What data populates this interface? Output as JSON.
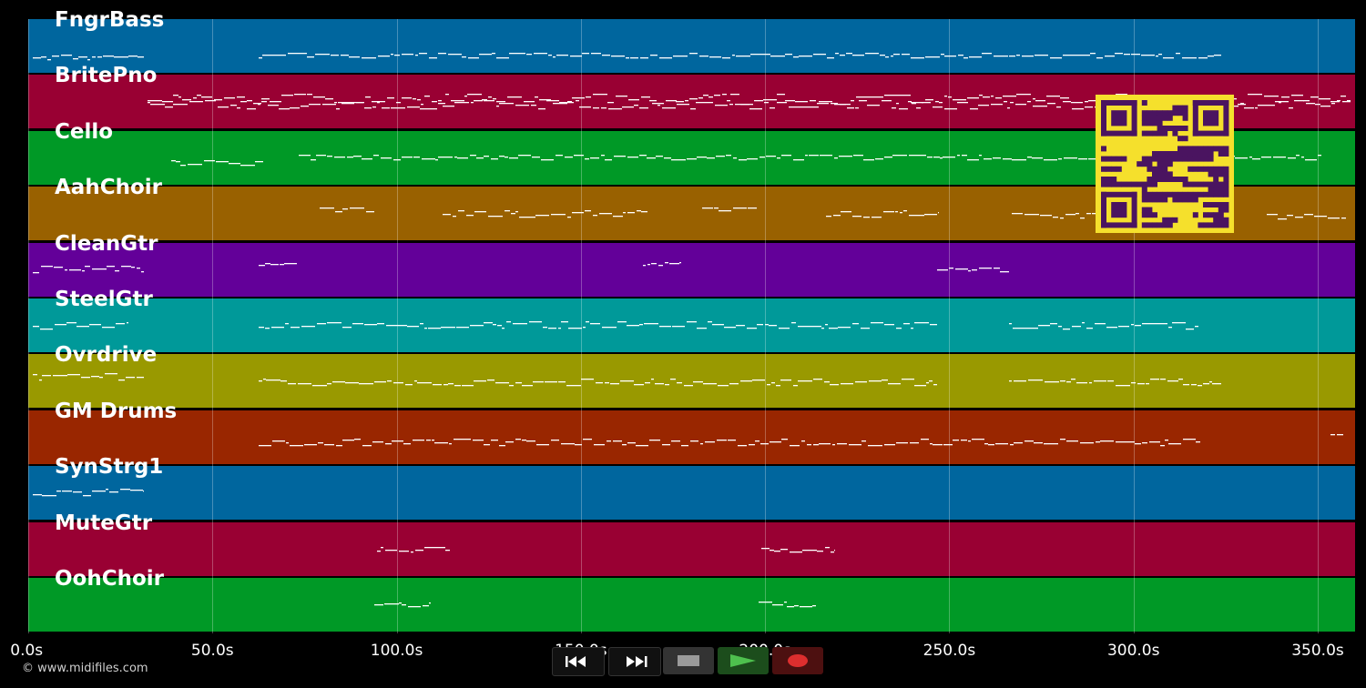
{
  "tracks": [
    {
      "name": "FngrBass",
      "color": "#00669e"
    },
    {
      "name": "BritePno",
      "color": "#990033"
    },
    {
      "name": "Cello",
      "color": "#009926"
    },
    {
      "name": "AahChoir",
      "color": "#996100"
    },
    {
      "name": "CleanGtr",
      "color": "#630099"
    },
    {
      "name": "SteelGtr",
      "color": "#009999"
    },
    {
      "name": "Ovrdrive",
      "color": "#999900"
    },
    {
      "name": "GM Drums",
      "color": "#992600"
    },
    {
      "name": "SynStrg1",
      "color": "#00669e"
    },
    {
      "name": "MuteGtr",
      "color": "#990033"
    },
    {
      "name": "OohChoir",
      "color": "#009926"
    }
  ],
  "timeline": {
    "max_seconds": 360,
    "ticks": [
      "0.0s",
      "50.0s",
      "100.0s",
      "150.0s",
      "200.0s",
      "250.0s",
      "300.0s",
      "350.0s"
    ]
  },
  "transport": {
    "rewind": "rewind-icon",
    "fast_forward": "fast-forward-icon",
    "stop": "stop-icon",
    "play": "play-icon",
    "record": "record-icon"
  },
  "copyright": "© www.midifiles.com",
  "colors": {
    "note": "#ffffff",
    "qr_background": "#f5e02c",
    "qr_module": "#4a1460"
  }
}
